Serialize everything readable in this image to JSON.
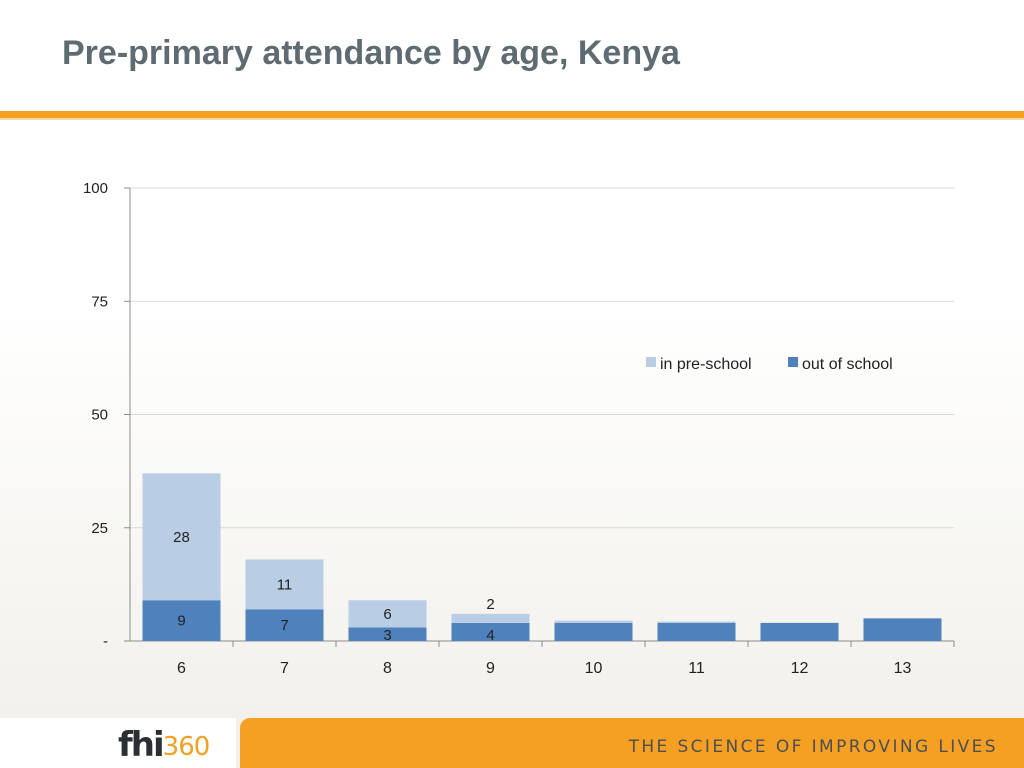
{
  "slide": {
    "title": "Pre-primary attendance by age, Kenya",
    "tagline": "THE SCIENCE OF IMPROVING LIVES",
    "logo": {
      "main": "fhi",
      "accent": "360"
    },
    "colors": {
      "accent": "#f6a023",
      "title": "#5f6b73"
    }
  },
  "chart_data": {
    "type": "bar",
    "stacked": true,
    "categories": [
      "6",
      "7",
      "8",
      "9",
      "10",
      "11",
      "12",
      "13"
    ],
    "series": [
      {
        "name": "out of school",
        "color": "#4f81bd",
        "values": [
          9,
          7,
          3,
          4,
          4,
          4,
          4,
          5
        ],
        "labels": [
          "9",
          "7",
          "3",
          "4",
          "",
          "",
          "",
          ""
        ]
      },
      {
        "name": "in pre-school",
        "color": "#b9cde5",
        "values": [
          28,
          11,
          6,
          2,
          0.5,
          0.3,
          0,
          0
        ],
        "labels": [
          "28",
          "11",
          "6",
          "2",
          "",
          "",
          "",
          ""
        ]
      }
    ],
    "ylim": [
      0,
      100
    ],
    "yticks": [
      0,
      25,
      50,
      75,
      100
    ],
    "ytick_labels": [
      "-",
      "25",
      "50",
      "75",
      "100"
    ],
    "grid": true,
    "legend": {
      "position": "right",
      "order": [
        "in pre-school",
        "out of school"
      ]
    }
  }
}
